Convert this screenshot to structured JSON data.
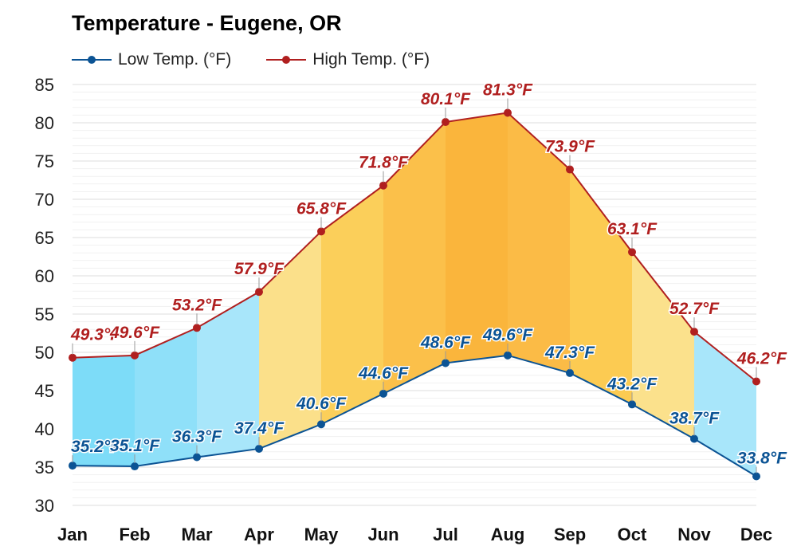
{
  "title": "Temperature - Eugene, OR",
  "legend": [
    {
      "label": "Low Temp. (°F)",
      "color": "#0b5394"
    },
    {
      "label": "High Temp. (°F)",
      "color": "#b01f1f"
    }
  ],
  "chart_data": {
    "type": "area",
    "title": "Temperature - Eugene, OR",
    "categories": [
      "Jan",
      "Feb",
      "Mar",
      "Apr",
      "May",
      "Jun",
      "Jul",
      "Aug",
      "Sep",
      "Oct",
      "Nov",
      "Dec"
    ],
    "series": [
      {
        "name": "Low Temp. (°F)",
        "color": "#0b5394",
        "values": [
          35.2,
          35.1,
          36.3,
          37.4,
          40.6,
          44.6,
          48.6,
          49.6,
          47.3,
          43.2,
          38.7,
          33.8
        ],
        "labels": [
          "35.2°F",
          "35.1°F",
          "36.3°F",
          "37.4°F",
          "40.6°F",
          "44.6°F",
          "48.6°F",
          "49.6°F",
          "47.3°F",
          "43.2°F",
          "38.7°F",
          "33.8°F"
        ]
      },
      {
        "name": "High Temp. (°F)",
        "color": "#b01f1f",
        "values": [
          49.3,
          49.6,
          53.2,
          57.9,
          65.8,
          71.8,
          80.1,
          81.3,
          73.9,
          63.1,
          52.7,
          46.2
        ],
        "labels": [
          "49.3°F",
          "49.6°F",
          "53.2°F",
          "57.9°F",
          "65.8°F",
          "71.8°F",
          "80.1°F",
          "81.3°F",
          "73.9°F",
          "63.1°F",
          "52.7°F",
          "46.2°F"
        ]
      }
    ],
    "ylim": [
      30,
      85
    ],
    "yticks": [
      "30",
      "35",
      "40",
      "45",
      "50",
      "55",
      "60",
      "65",
      "70",
      "75",
      "80",
      "85"
    ],
    "grid": true,
    "legend_position": "top-left",
    "band_colors": [
      "#7ddcf8",
      "#8fe0f9",
      "#a8e6fa",
      "#fbe08a",
      "#fbcf5a",
      "#fbc04a",
      "#fab53c",
      "#fbbb46",
      "#fccb52",
      "#fbe18c",
      "#a8e6fa",
      "#5ed2fb"
    ]
  }
}
